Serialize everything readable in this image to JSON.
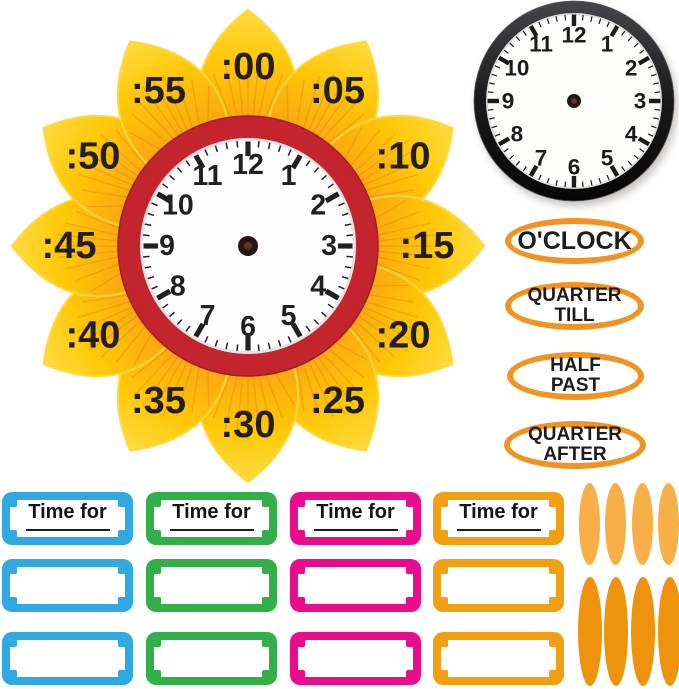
{
  "sunflower": {
    "petal_labels": [
      ":00",
      ":05",
      ":10",
      ":15",
      ":20",
      ":25",
      ":30",
      ":35",
      ":40",
      ":45",
      ":50",
      ":55"
    ],
    "clock_numbers": [
      "12",
      "1",
      "2",
      "3",
      "4",
      "5",
      "6",
      "7",
      "8",
      "9",
      "10",
      "11"
    ]
  },
  "small_clock": {
    "numbers": [
      "12",
      "1",
      "2",
      "3",
      "4",
      "5",
      "6",
      "7",
      "8",
      "9",
      "10",
      "11"
    ]
  },
  "phrase_ovals": {
    "items": [
      {
        "name": "oclock",
        "lines": [
          "O'CLOCK"
        ]
      },
      {
        "name": "quarter-till",
        "lines": [
          "QUARTER",
          "TILL"
        ]
      },
      {
        "name": "half-past",
        "lines": [
          "HALF",
          "PAST"
        ]
      },
      {
        "name": "quarter-after",
        "lines": [
          "QUARTER",
          "AFTER"
        ]
      }
    ]
  },
  "cards": {
    "title_label": "Time for",
    "rows_per_column": 3,
    "columns": [
      {
        "name": "blue",
        "hex": "#2FA9DF"
      },
      {
        "name": "green",
        "hex": "#33AF47"
      },
      {
        "name": "pink",
        "hex": "#E80D8C"
      },
      {
        "name": "orange",
        "hex": "#F2A013"
      }
    ]
  },
  "sticker_petals": {
    "rows": [
      {
        "name": "light-orange",
        "hex": "#F8AF47",
        "count": 4
      },
      {
        "name": "dark-orange",
        "hex": "#EF920D",
        "count": 4
      }
    ]
  },
  "colors": {
    "petal_tip_yellow": "#FFDB3E",
    "petal_gold": "#FFC808",
    "petal_base_orange": "#EF8D10",
    "clock_rim_red": "#C4242E",
    "numeral_black": "#231F20",
    "small_clock_rim_black": "#1A1A1C",
    "oval_border_orange": "#EF9420",
    "clock_face_white": "#FEFEFE"
  }
}
